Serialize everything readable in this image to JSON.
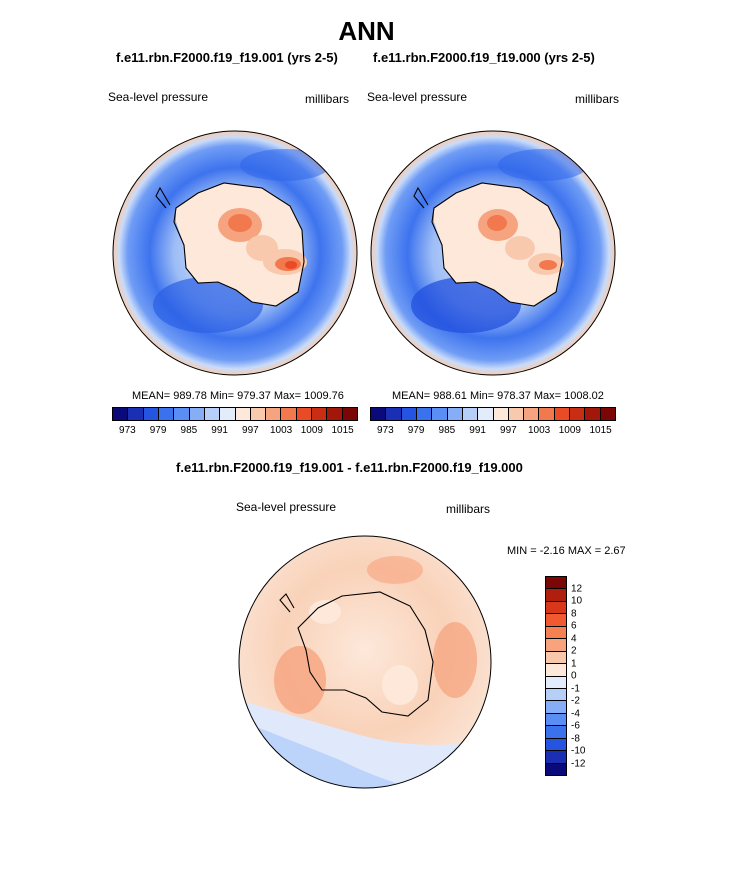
{
  "figure": {
    "title": "ANN",
    "variable": "Sea-level pressure",
    "units": "millibars"
  },
  "panels": [
    {
      "case_title": "f.e11.rbn.F2000.f19_f19.001 (yrs 2-5)",
      "mean": "989.78",
      "min": "979.37",
      "max": "1009.76",
      "stats_text": "MEAN= 989.78  Min= 979.37  Max= 1009.76"
    },
    {
      "case_title": "f.e11.rbn.F2000.f19_f19.000 (yrs 2-5)",
      "mean": "988.61",
      "min": "978.37",
      "max": "1008.02",
      "stats_text": "MEAN= 988.61  Min= 978.37  Max= 1008.02"
    }
  ],
  "difference": {
    "case_title": "f.e11.rbn.F2000.f19_f19.001 - f.e11.rbn.F2000.f19_f19.000",
    "min": "-2.16",
    "max": "2.67",
    "stats_text": "MIN =  -2.16 MAX =   2.67"
  },
  "colorbar_main": {
    "colors": [
      "#0a0a7a",
      "#1a2fb4",
      "#2454e0",
      "#3a72ee",
      "#5b8ef4",
      "#86aef7",
      "#b6cff9",
      "#e2ecfb",
      "#fde8da",
      "#f9c9ad",
      "#f6a47f",
      "#f2784e",
      "#e84b25",
      "#c92d13",
      "#a3170b",
      "#7a0606"
    ],
    "ticks": [
      "973",
      "979",
      "985",
      "991",
      "997",
      "1003",
      "1009",
      "1015"
    ]
  },
  "colorbar_diff": {
    "colors": [
      "#7a0606",
      "#b01e0e",
      "#d8371a",
      "#f05a2e",
      "#f58052",
      "#f7a47e",
      "#f9c8ab",
      "#fde8da",
      "#e2ecfb",
      "#b6cff9",
      "#86aef7",
      "#5b8ef4",
      "#3a72ee",
      "#2454e0",
      "#1a2fb4",
      "#0a0a7a"
    ],
    "ticks": [
      "12",
      "10",
      "8",
      "6",
      "4",
      "2",
      "1",
      "0",
      "-1",
      "-2",
      "-4",
      "-6",
      "-8",
      "-10",
      "-12"
    ]
  }
}
